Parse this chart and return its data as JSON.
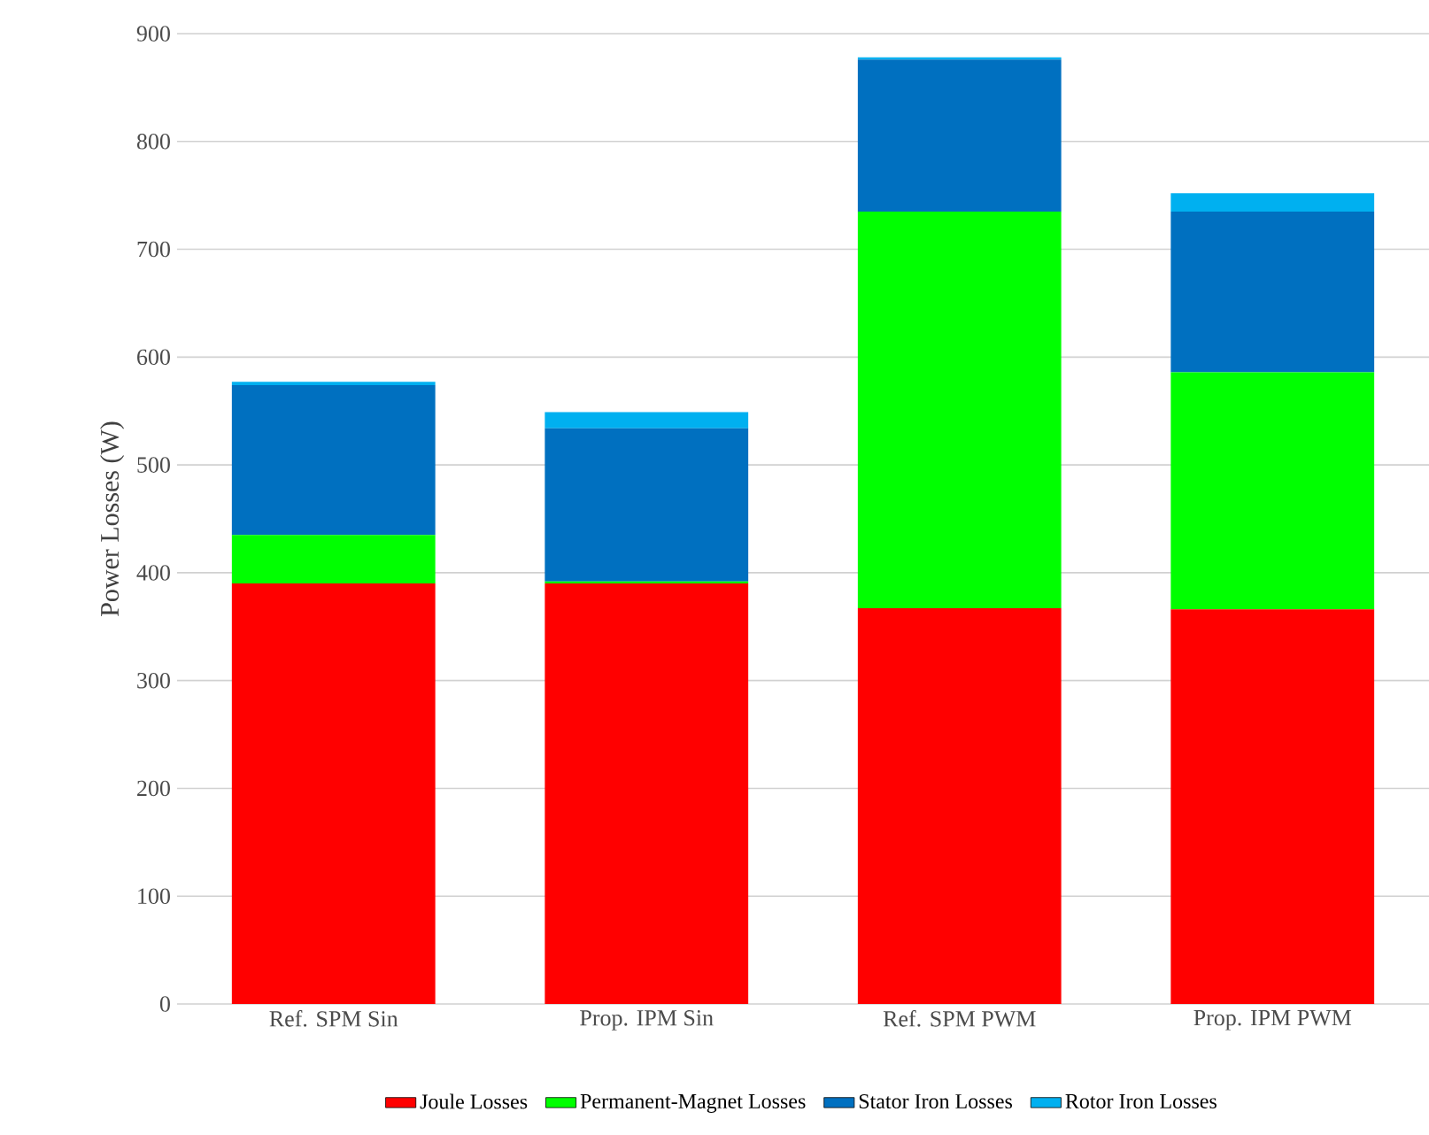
{
  "chart_data": {
    "type": "bar",
    "stacked": true,
    "ylabel": "Power Losses (W)",
    "categories": [
      "Ref. SPM Sin",
      "Prop. IPM Sin",
      "Ref. SPM PWM",
      "Prop. IPM PWM"
    ],
    "series": [
      {
        "name": "Joule Losses",
        "color": "#ff0000",
        "values": [
          390,
          390,
          367,
          366
        ]
      },
      {
        "name": "Permanent-Magnet Losses",
        "color": "#00ff00",
        "values": [
          45,
          2,
          368,
          220
        ]
      },
      {
        "name": "Stator Iron Losses",
        "color": "#0070c0",
        "values": [
          139,
          142,
          141,
          149
        ]
      },
      {
        "name": "Rotor Iron Losses",
        "color": "#00b0f0",
        "values": [
          3,
          15,
          2,
          17
        ]
      }
    ],
    "ylim": [
      0,
      900
    ],
    "yticks": [
      0,
      100,
      200,
      300,
      400,
      500,
      600,
      700,
      800,
      900
    ],
    "grid": "y",
    "legend": "bottom"
  }
}
